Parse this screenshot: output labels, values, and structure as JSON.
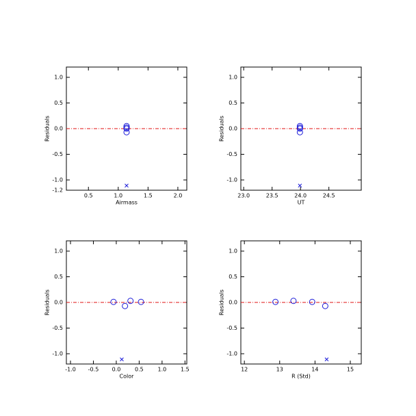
{
  "chart_data": [
    {
      "type": "scatter",
      "xlabel": "Airmass",
      "ylabel": "Residuals",
      "xlim": [
        0.13,
        2.15
      ],
      "xticks": [
        0.5,
        {
          "value": 1.0,
          "label": "1.0"
        },
        1.5,
        {
          "value": 2.0,
          "label": "2.0"
        }
      ],
      "ylim": [
        -1.2,
        1.2
      ],
      "yticks": [
        -1.2,
        {
          "value": -1.0,
          "label": "-1.0"
        },
        -0.5,
        {
          "value": 0.0,
          "label": "0.0"
        },
        0.5,
        {
          "value": 1.0,
          "label": "1.0"
        }
      ],
      "hline": 0,
      "series": [
        {
          "marker": "circle",
          "color": "#1a1ad8",
          "x": [
            1.14,
            1.14,
            1.14,
            1.14
          ],
          "values": [
            0.05,
            0.02,
            0.0,
            -0.07
          ]
        },
        {
          "marker": "x",
          "color": "#1a1ad8",
          "x": [
            1.14
          ],
          "values": [
            -1.11
          ]
        }
      ]
    },
    {
      "type": "scatter",
      "xlabel": "UT",
      "ylabel": "Residuals",
      "xlim": [
        22.95,
        25.07
      ],
      "xticks": [
        {
          "value": 23.0,
          "label": "23.0"
        },
        23.5,
        {
          "value": 24.0,
          "label": "24.0"
        },
        24.5
      ],
      "ylim": [
        -1.2,
        1.2
      ],
      "yticks": [
        {
          "value": -1.0,
          "label": "-1.0"
        },
        -0.5,
        {
          "value": 0.0,
          "label": "0.0"
        },
        0.5,
        {
          "value": 1.0,
          "label": "1.0"
        }
      ],
      "hline": 0,
      "series": [
        {
          "marker": "circle",
          "color": "#1a1ad8",
          "x": [
            23.99,
            23.99,
            23.99,
            23.99
          ],
          "values": [
            0.05,
            0.02,
            0.0,
            -0.07
          ]
        },
        {
          "marker": "x",
          "color": "#1a1ad8",
          "x": [
            23.99
          ],
          "values": [
            -1.11
          ]
        }
      ]
    },
    {
      "type": "scatter",
      "xlabel": "Color",
      "ylabel": "Residuals",
      "xlim": [
        -1.09,
        1.54
      ],
      "xticks": [
        {
          "value": -1.0,
          "label": "-1.0"
        },
        -0.5,
        {
          "value": 0.0,
          "label": "0.0"
        },
        0.5,
        {
          "value": 1.0,
          "label": "1.0"
        },
        1.5
      ],
      "ylim": [
        -1.2,
        1.2
      ],
      "yticks": [
        {
          "value": -1.0,
          "label": "-1.0"
        },
        -0.5,
        {
          "value": 0.0,
          "label": "0.0"
        },
        0.5,
        {
          "value": 1.0,
          "label": "1.0"
        }
      ],
      "hline": 0,
      "series": [
        {
          "marker": "circle",
          "color": "#1a1ad8",
          "x": [
            -0.06,
            0.19,
            0.31,
            0.54
          ],
          "values": [
            0.01,
            -0.07,
            0.03,
            0.01
          ]
        },
        {
          "marker": "x",
          "color": "#1a1ad8",
          "x": [
            0.12
          ],
          "values": [
            -1.11
          ]
        }
      ]
    },
    {
      "type": "scatter",
      "xlabel": "R (Std)",
      "ylabel": "Residuals",
      "xlim": [
        11.9,
        15.31
      ],
      "xticks": [
        12,
        13,
        14,
        15
      ],
      "ylim": [
        -1.2,
        1.2
      ],
      "yticks": [
        {
          "value": -1.0,
          "label": "-1.0"
        },
        -0.5,
        {
          "value": 0.0,
          "label": "0.0"
        },
        0.5,
        {
          "value": 1.0,
          "label": "1.0"
        }
      ],
      "hline": 0,
      "series": [
        {
          "marker": "circle",
          "color": "#1a1ad8",
          "x": [
            12.88,
            13.39,
            13.92,
            14.29
          ],
          "values": [
            0.01,
            0.03,
            0.01,
            -0.07
          ]
        },
        {
          "marker": "x",
          "color": "#1a1ad8",
          "x": [
            14.33
          ],
          "values": [
            -1.11
          ]
        }
      ]
    }
  ]
}
